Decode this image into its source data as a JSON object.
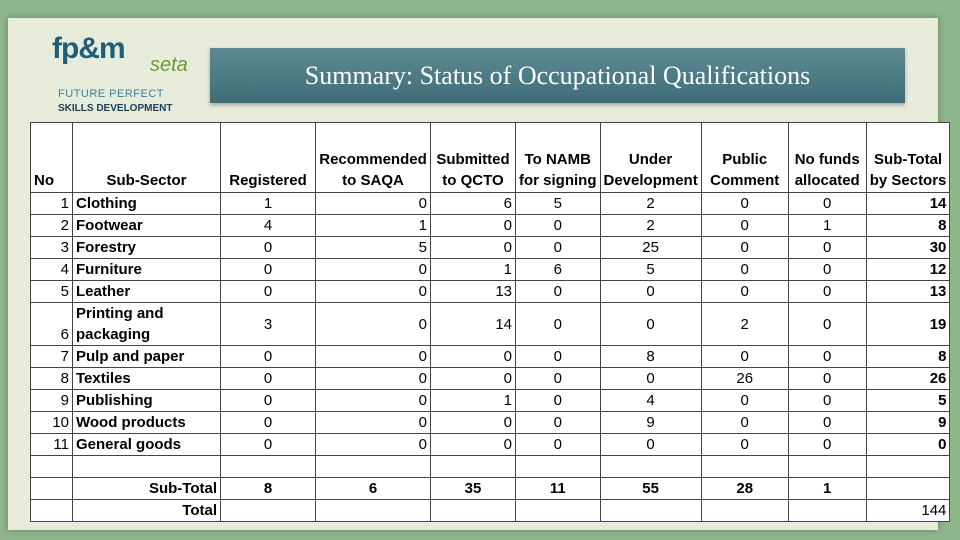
{
  "logo": {
    "mark": "fp&m",
    "sub": "seta",
    "line1": "FUTURE PERFECT",
    "line2": "SKILLS DEVELOPMENT"
  },
  "title": "Summary: Status of Occupational Qualifications",
  "table": {
    "columns": [
      [
        "No"
      ],
      [
        "Sub-Sector"
      ],
      [
        "Registered"
      ],
      [
        "Recommended",
        "to SAQA"
      ],
      [
        "Submitted",
        "to QCTO"
      ],
      [
        "To NAMB",
        "for signing"
      ],
      [
        "Under",
        "Development"
      ],
      [
        "Public",
        "Comment"
      ],
      [
        "No funds",
        "allocated"
      ],
      [
        "Sub-Total",
        "by Sectors"
      ]
    ],
    "rows": [
      [
        1,
        "Clothing",
        1,
        0,
        6,
        5,
        2,
        0,
        0,
        14
      ],
      [
        2,
        "Footwear",
        4,
        1,
        0,
        0,
        2,
        0,
        1,
        8
      ],
      [
        3,
        "Forestry",
        0,
        5,
        0,
        0,
        25,
        0,
        0,
        30
      ],
      [
        4,
        "Furniture",
        0,
        0,
        1,
        6,
        5,
        0,
        0,
        12
      ],
      [
        5,
        "Leather",
        0,
        0,
        13,
        0,
        0,
        0,
        0,
        13
      ],
      [
        6,
        "Printing and packaging",
        3,
        0,
        14,
        0,
        0,
        2,
        0,
        19
      ],
      [
        7,
        "Pulp and paper",
        0,
        0,
        0,
        0,
        8,
        0,
        0,
        8
      ],
      [
        8,
        "Textiles",
        0,
        0,
        0,
        0,
        0,
        26,
        0,
        26
      ],
      [
        9,
        "Publishing",
        0,
        0,
        1,
        0,
        4,
        0,
        0,
        5
      ],
      [
        10,
        "Wood products",
        0,
        0,
        0,
        0,
        9,
        0,
        0,
        9
      ],
      [
        11,
        "General goods",
        0,
        0,
        0,
        0,
        0,
        0,
        0,
        0
      ]
    ],
    "subtotal": {
      "label": "Sub-Total",
      "values": [
        8,
        6,
        35,
        11,
        55,
        28,
        1
      ]
    },
    "total": {
      "label": "Total",
      "value": 144
    }
  }
}
